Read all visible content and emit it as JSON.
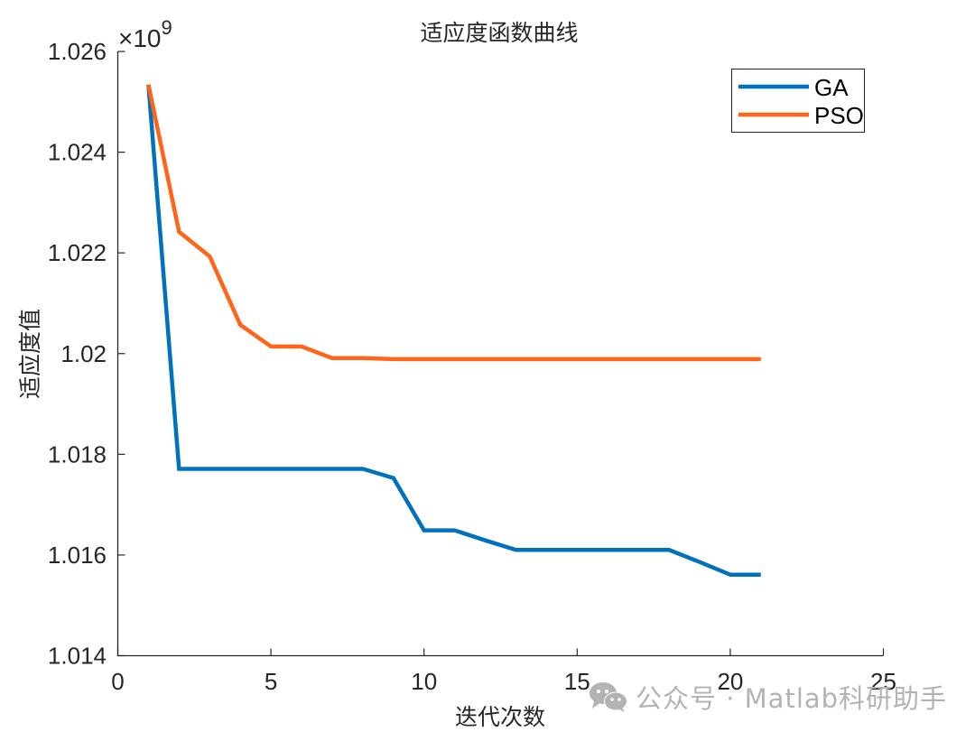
{
  "chart_data": {
    "type": "line",
    "title": "适应度函数曲线",
    "xlabel": "迭代次数",
    "ylabel": "适应度值",
    "y_exponent_label": "×10",
    "y_exponent": "9",
    "xlim": [
      0,
      25
    ],
    "ylim": [
      1.014,
      1.026
    ],
    "x_ticks": [
      0,
      5,
      10,
      15,
      20,
      25
    ],
    "x_tick_labels": [
      "0",
      "5",
      "10",
      "15",
      "20",
      "25"
    ],
    "y_ticks": [
      1.014,
      1.016,
      1.018,
      1.02,
      1.022,
      1.024,
      1.026
    ],
    "y_tick_labels": [
      "1.014",
      "1.016",
      "1.018",
      "1.02",
      "1.022",
      "1.024",
      "1.026"
    ],
    "grid": false,
    "box": false,
    "legend_position": "northeast",
    "x": [
      1,
      2,
      3,
      4,
      5,
      6,
      7,
      8,
      9,
      10,
      11,
      12,
      13,
      14,
      15,
      16,
      17,
      18,
      19,
      20,
      21
    ],
    "series": [
      {
        "name": "GA",
        "color": "#0072BD",
        "values": [
          1.02534,
          1.01771,
          1.01771,
          1.01771,
          1.01771,
          1.01771,
          1.01771,
          1.01771,
          1.01753,
          1.01649,
          1.01649,
          1.01629,
          1.0161,
          1.0161,
          1.0161,
          1.0161,
          1.0161,
          1.0161,
          1.01586,
          1.01561,
          1.01561
        ]
      },
      {
        "name": "PSO",
        "color": "#FF6418",
        "values": [
          1.02534,
          1.02242,
          1.02193,
          1.02057,
          1.02014,
          1.02014,
          1.01991,
          1.01991,
          1.01989,
          1.01989,
          1.01989,
          1.01989,
          1.01989,
          1.01989,
          1.01989,
          1.01989,
          1.01989,
          1.01989,
          1.01989,
          1.01989,
          1.01989
        ]
      }
    ]
  },
  "legend": {
    "items": [
      {
        "label": "GA",
        "color": "#0072BD"
      },
      {
        "label": "PSO",
        "color": "#FF6418"
      }
    ]
  },
  "watermark": {
    "icon": "wechat-icon",
    "text": "公众号 · Matlab科研助手"
  }
}
